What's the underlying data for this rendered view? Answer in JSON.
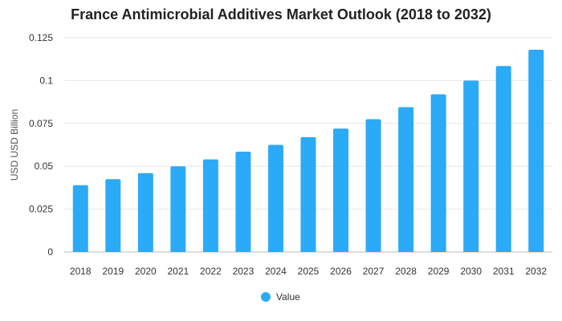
{
  "chart_data": {
    "type": "bar",
    "title": "France Antimicrobial Additives Market Outlook (2018 to 2032)",
    "xlabel": "",
    "ylabel": "USD USD Billion",
    "categories": [
      "2018",
      "2019",
      "2020",
      "2021",
      "2022",
      "2023",
      "2024",
      "2025",
      "2026",
      "2027",
      "2028",
      "2029",
      "2030",
      "2031",
      "2032"
    ],
    "series": [
      {
        "name": "Value",
        "values": [
          0.039,
          0.0425,
          0.046,
          0.05,
          0.054,
          0.0585,
          0.0625,
          0.067,
          0.072,
          0.0775,
          0.0845,
          0.092,
          0.1,
          0.1085,
          0.118
        ]
      }
    ],
    "ylim": [
      0,
      0.125
    ],
    "yticks": [
      "0",
      "0.025",
      "0.05",
      "0.075",
      "0.1",
      "0.125"
    ],
    "ytick_values": [
      0,
      0.025,
      0.05,
      0.075,
      0.1,
      0.125
    ],
    "grid": true,
    "legend_position": "bottom-center",
    "colors": {
      "bar": "#2BAAF7",
      "grid": "#E6E6E6",
      "axis": "#BBBBBB"
    }
  }
}
